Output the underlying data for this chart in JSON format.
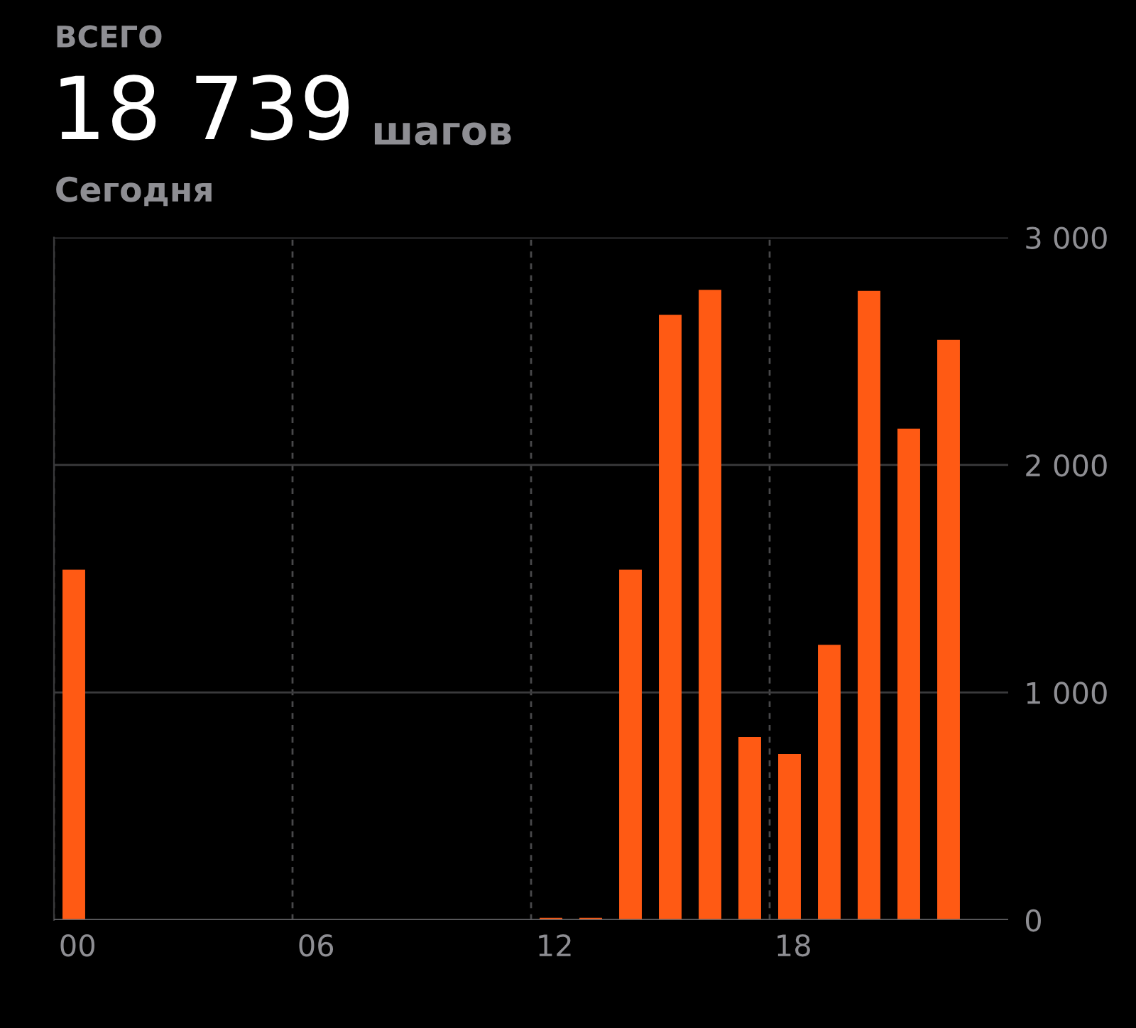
{
  "chart_data": {
    "type": "bar",
    "title": "18 739",
    "subtitle": "Сегодня",
    "annotations": [
      "ВСЕГО",
      "шагов"
    ],
    "categories": [
      "00",
      null,
      null,
      null,
      null,
      null,
      "06",
      null,
      null,
      null,
      null,
      null,
      "12",
      null,
      null,
      null,
      null,
      null,
      "18",
      null,
      null,
      null,
      null,
      null
    ],
    "values": [
      1540,
      0,
      0,
      0,
      0,
      0,
      0,
      0,
      0,
      0,
      0,
      0,
      10,
      10,
      1540,
      2660,
      2770,
      805,
      730,
      1210,
      2765,
      2160,
      2550,
      0
    ],
    "color": "#ff5a14",
    "ylim": [
      0,
      3000
    ],
    "yticks": [
      {
        "value": 0,
        "label": "0"
      },
      {
        "value": 1000,
        "label": "1 000"
      },
      {
        "value": 2000,
        "label": "2 000"
      },
      {
        "value": 3000,
        "label": "3 000"
      }
    ],
    "grid": true
  }
}
